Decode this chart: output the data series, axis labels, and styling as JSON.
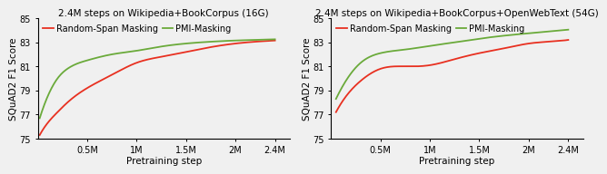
{
  "left": {
    "title": "2.4M steps on Wikipedia+BookCorpus (16G)",
    "xlabel": "Pretraining step",
    "ylabel": "SQuAD2 F1 Score",
    "xtick_labels": [
      "0.5M",
      "1M",
      "1.5M",
      "2M",
      "2.4M"
    ],
    "xtick_values": [
      0.5,
      1.0,
      1.5,
      2.0,
      2.4
    ],
    "xlim": [
      0.0,
      2.55
    ],
    "ylim": [
      75,
      85
    ],
    "yticks": [
      75,
      77,
      79,
      81,
      83,
      85
    ],
    "random_span": {
      "x": [
        0.02,
        0.1,
        0.2,
        0.3,
        0.5,
        0.75,
        1.0,
        1.25,
        1.5,
        1.75,
        2.0,
        2.2,
        2.4
      ],
      "y": [
        75.3,
        76.3,
        77.2,
        78.0,
        79.2,
        80.3,
        81.3,
        81.8,
        82.2,
        82.6,
        82.9,
        83.05,
        83.15
      ],
      "color": "#e83020",
      "label": "Random-Span Masking"
    },
    "pmi": {
      "x": [
        0.02,
        0.1,
        0.2,
        0.3,
        0.5,
        0.75,
        1.0,
        1.25,
        1.5,
        1.75,
        2.0,
        2.2,
        2.4
      ],
      "y": [
        76.7,
        78.5,
        80.0,
        80.8,
        81.5,
        82.0,
        82.3,
        82.65,
        82.9,
        83.05,
        83.15,
        83.2,
        83.25
      ],
      "color": "#6aaa3a",
      "label": "PMI-Masking"
    }
  },
  "right": {
    "title": "2.4M steps on Wikipedia+BookCorpus+OpenWebText (54G)",
    "xlabel": "Pretraining step",
    "ylabel": "SQuAD2 F1 Score",
    "xtick_labels": [
      "0.5M",
      "1M",
      "1.5M",
      "2M",
      "2.4M"
    ],
    "xtick_values": [
      0.5,
      1.0,
      1.5,
      2.0,
      2.4
    ],
    "xlim": [
      0.0,
      2.55
    ],
    "ylim": [
      75,
      85
    ],
    "yticks": [
      75,
      77,
      79,
      81,
      83,
      85
    ],
    "random_span": {
      "x": [
        0.05,
        0.15,
        0.3,
        0.5,
        0.75,
        1.0,
        1.25,
        1.5,
        1.75,
        2.0,
        2.2,
        2.4
      ],
      "y": [
        77.2,
        78.5,
        79.8,
        80.8,
        81.0,
        81.1,
        81.6,
        82.1,
        82.5,
        82.9,
        83.05,
        83.2
      ],
      "color": "#e83020",
      "label": "Random-Span Masking"
    },
    "pmi": {
      "x": [
        0.05,
        0.15,
        0.3,
        0.5,
        0.75,
        1.0,
        1.25,
        1.5,
        1.75,
        2.0,
        2.2,
        2.4
      ],
      "y": [
        78.3,
        79.8,
        81.3,
        82.1,
        82.4,
        82.7,
        83.0,
        83.3,
        83.55,
        83.75,
        83.9,
        84.05
      ],
      "color": "#6aaa3a",
      "label": "PMI-Masking"
    }
  },
  "background_color": "#f0f0f0",
  "plot_bg": "#f0f0f0",
  "title_fontsize": 7.5,
  "label_fontsize": 7.5,
  "tick_fontsize": 7,
  "legend_fontsize": 7,
  "line_width": 1.3
}
